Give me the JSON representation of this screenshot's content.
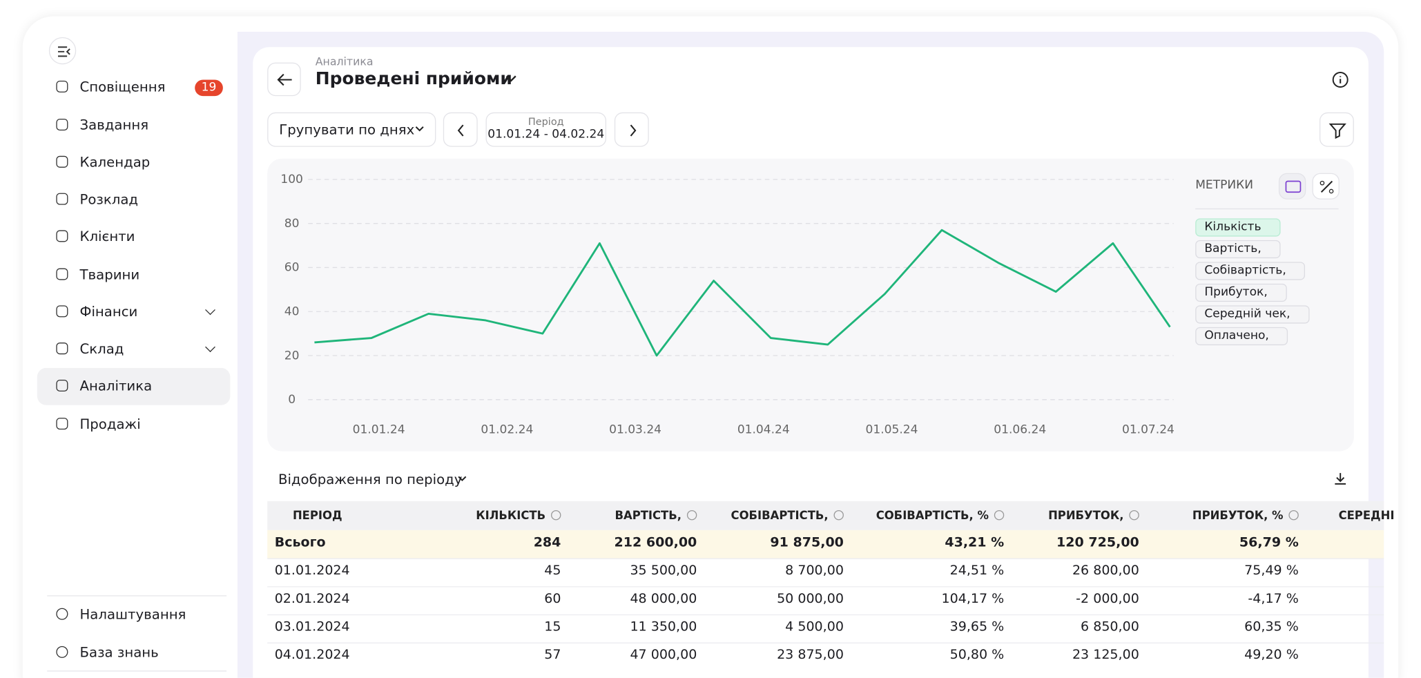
{
  "sidebar": {
    "items": [
      {
        "label": "Сповіщення",
        "badge": "19"
      },
      {
        "label": "Завдання"
      },
      {
        "label": "Календар"
      },
      {
        "label": "Розклад"
      },
      {
        "label": "Клієнти"
      },
      {
        "label": "Тварини"
      },
      {
        "label": "Фінанси"
      },
      {
        "label": "Склад"
      },
      {
        "label": "Аналітика"
      },
      {
        "label": "Продажі"
      }
    ],
    "footer": [
      "Налаштування",
      "База знань"
    ]
  },
  "header": {
    "breadcrumb": "Аналітика",
    "title": "Проведені прийоми"
  },
  "toolbar": {
    "group": "Групувати по днях",
    "period_label": "Період",
    "period": "01.01.24 - 04.02.24"
  },
  "chart_data": {
    "type": "line",
    "x_labels": [
      "01.01.24",
      "01.02.24",
      "01.03.24",
      "01.04.24",
      "01.05.24",
      "01.06.24",
      "01.07.24"
    ],
    "series": [
      {
        "name": "Кількість",
        "color": "#1fb57a",
        "values": [
          26,
          28,
          39,
          36,
          30,
          71,
          20,
          54,
          28,
          25,
          48,
          77,
          62,
          49,
          71,
          33
        ]
      }
    ],
    "ylim": [
      0,
      100
    ],
    "yticks": [
      0,
      20,
      40,
      60,
      80,
      100
    ],
    "grid": true
  },
  "metrics": {
    "title": "МЕТРИКИ",
    "items": [
      "Вартість,",
      "Собівартість,",
      "Прибуток,",
      "Середній чек,",
      "Оплачено,"
    ]
  },
  "table": {
    "title": "Відображення по періоду",
    "columns": [
      "ПЕРІОД",
      "КІЛЬКІСТЬ",
      "ВАРТІСТЬ,",
      "СОБІВАРТІСТЬ,",
      "СОБІВАРТІСТЬ, %",
      "ПРИБУТОК,",
      "ПРИБУТОК, %",
      "СЕРЕДНІ"
    ],
    "rows": [
      [
        "Всього",
        "284",
        "212 600,00",
        "91 875,00",
        "43,21 %",
        "120 725,00",
        "56,79 %"
      ],
      [
        "01.01.2024",
        "45",
        "35 500,00",
        "8 700,00",
        "24,51 %",
        "26 800,00",
        "75,49 %"
      ],
      [
        "02.01.2024",
        "60",
        "48 000,00",
        "50 000,00",
        "104,17 %",
        "-2 000,00",
        "-4,17 %"
      ],
      [
        "03.01.2024",
        "15",
        "11 350,00",
        "4 500,00",
        "39,65 %",
        "6 850,00",
        "60,35 %"
      ],
      [
        "04.01.2024",
        "57",
        "47 000,00",
        "23 875,00",
        "50,80 %",
        "23 125,00",
        "49,20 %"
      ]
    ]
  }
}
